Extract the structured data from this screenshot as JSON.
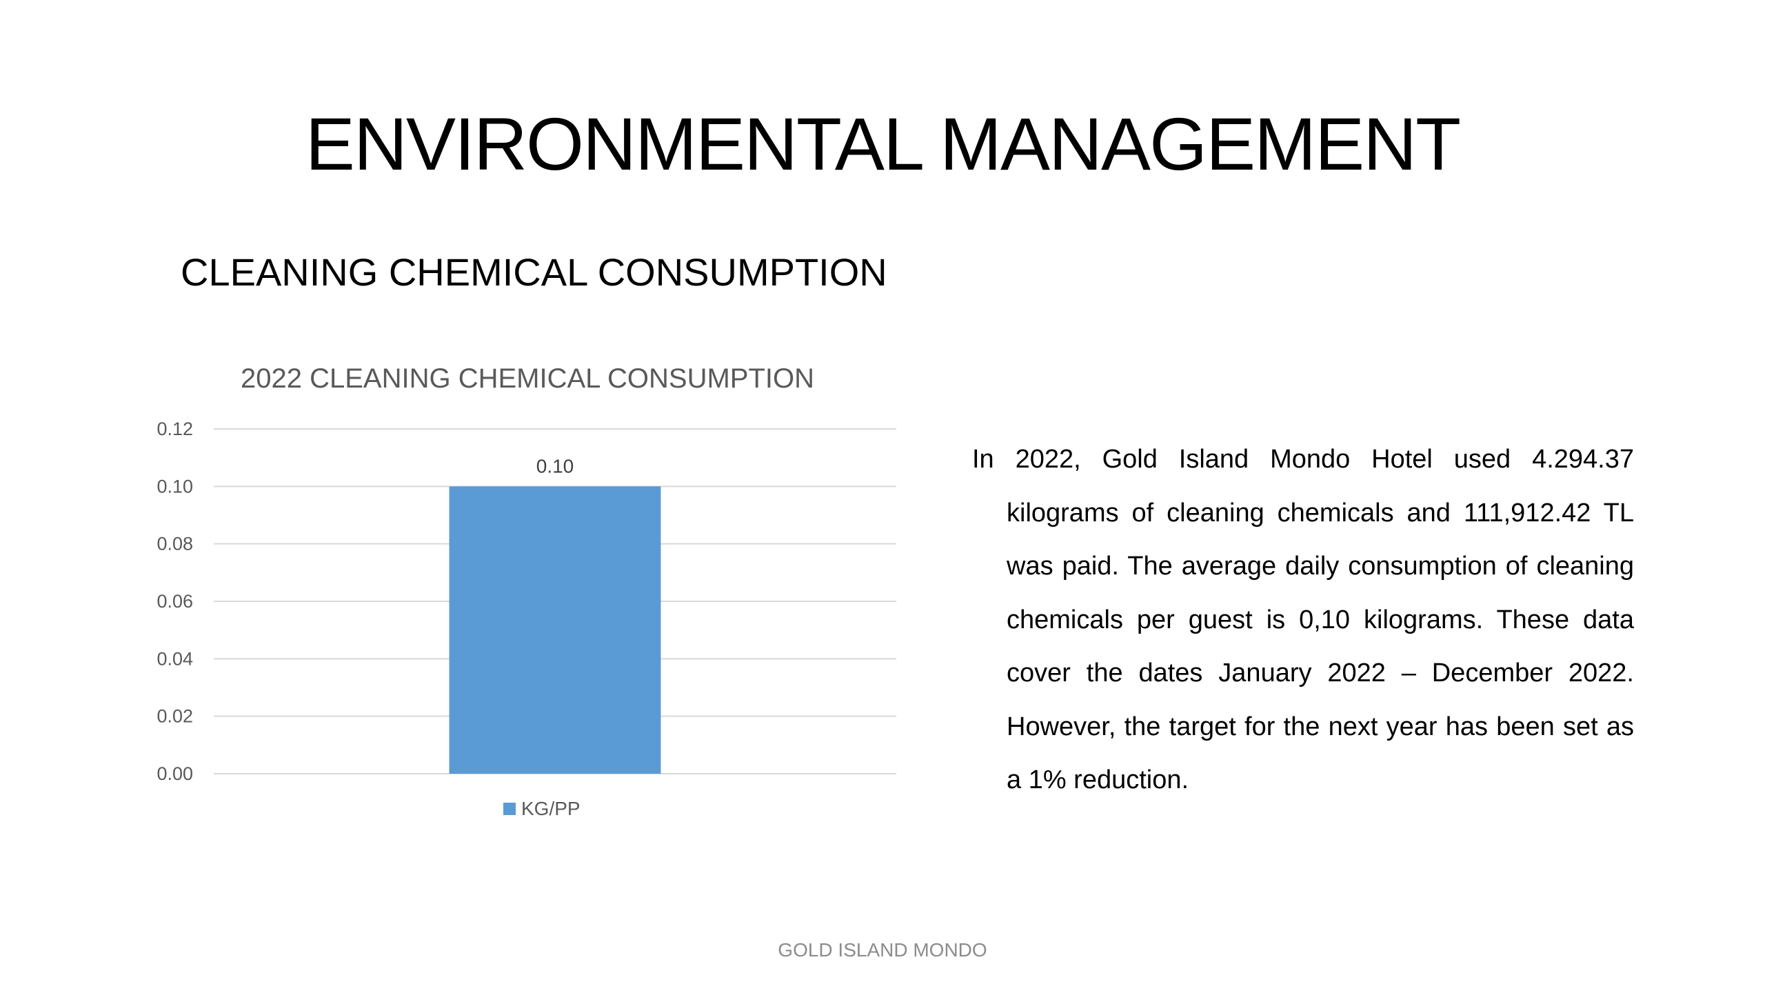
{
  "slide": {
    "title": "ENVIRONMENTAL MANAGEMENT",
    "section_title": "CLEANING CHEMICAL CONSUMPTION",
    "footer": "GOLD ISLAND MONDO"
  },
  "description": "In 2022, Gold Island Mondo Hotel used 4.294.37 kilograms of cleaning chemicals and 111,912.42 TL was paid. The average daily consumption of cleaning chemicals per guest is 0,10 kilograms. These data cover the dates January 2022 – December 2022. However, the target for the next year has been set as a 1% reduction.",
  "chart_data": {
    "type": "bar",
    "title": "2022 CLEANING CHEMICAL CONSUMPTION",
    "categories": [
      ""
    ],
    "series": [
      {
        "name": "KG/PP",
        "values": [
          0.1
        ],
        "color": "#5b9bd5",
        "data_labels": [
          "0.10"
        ]
      }
    ],
    "xlabel": "",
    "ylabel": "",
    "ylim": [
      0,
      0.12
    ],
    "y_ticks": [
      "0.00",
      "0.02",
      "0.04",
      "0.06",
      "0.08",
      "0.10",
      "0.12"
    ],
    "grid": true,
    "legend_position": "bottom"
  }
}
